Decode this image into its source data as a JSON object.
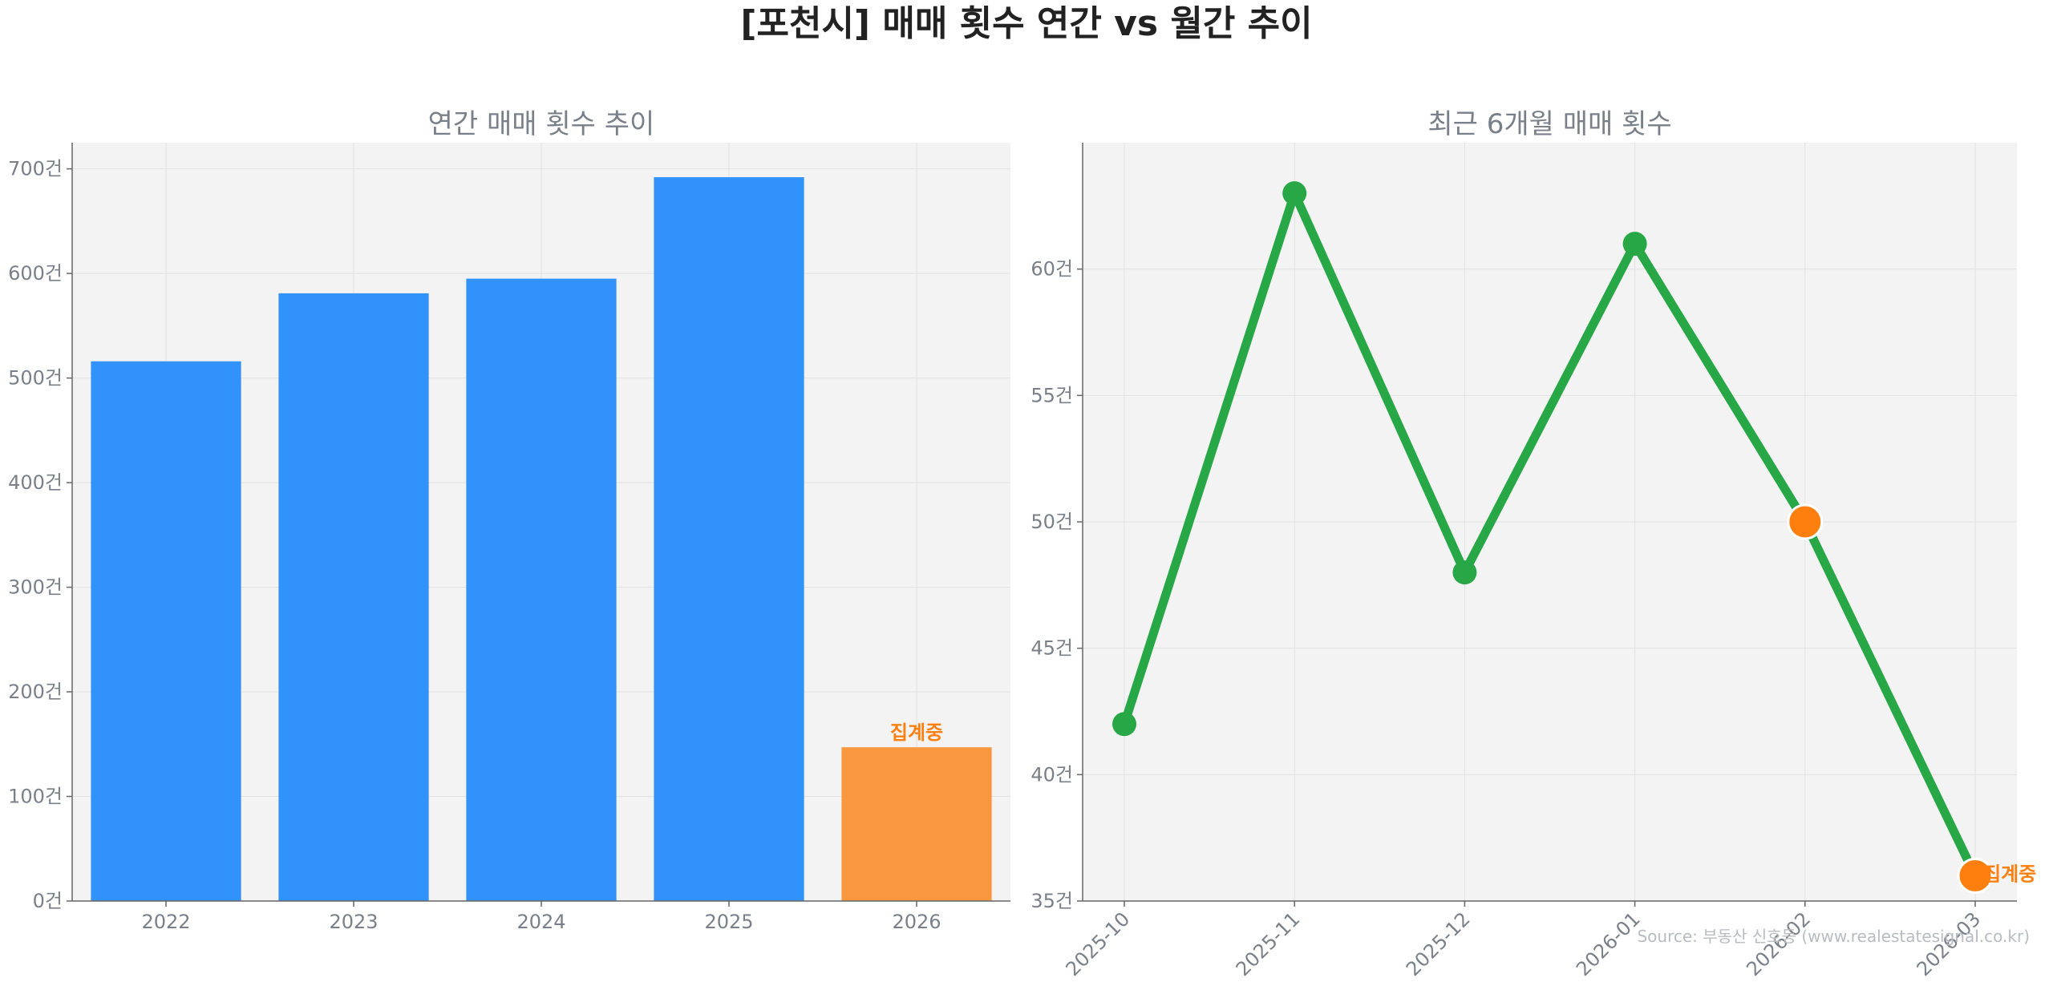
{
  "title": "[포천시] 매매 횟수 연간 vs 월간 추이",
  "source": "Source: 부동산 신호등 (www.realestatesignal.co.kr)",
  "colors": {
    "annual": "#3292fb",
    "annual_partial": "#f9973f",
    "monthly_line": "#27a745",
    "highlight": "#ff7f0e",
    "plot_bg": "#f3f3f3"
  },
  "chart_data": [
    {
      "type": "bar",
      "title": "연간 매매 횟수 추이",
      "categories": [
        "2022",
        "2023",
        "2024",
        "2025",
        "2026"
      ],
      "values": [
        516,
        581,
        595,
        692,
        147
      ],
      "partial_flags": [
        false,
        false,
        false,
        false,
        true
      ],
      "annotation": "집계중",
      "ylim": [
        0,
        725
      ],
      "yticks": [
        0,
        100,
        200,
        300,
        400,
        500,
        600,
        700
      ],
      "ytick_labels": [
        "0건",
        "100건",
        "200건",
        "300건",
        "400건",
        "500건",
        "600건",
        "700건"
      ],
      "grid": true
    },
    {
      "type": "line",
      "title": "최근 6개월 매매 횟수",
      "x": [
        "2025-10",
        "2025-11",
        "2025-12",
        "2026-01",
        "2026-02",
        "2026-03"
      ],
      "values": [
        42,
        63,
        48,
        61,
        50,
        36
      ],
      "highlight_points": [
        4,
        5
      ],
      "annotation": "집계중",
      "ylim": [
        35,
        65
      ],
      "yticks": [
        35,
        40,
        45,
        50,
        55,
        60
      ],
      "ytick_labels": [
        "35건",
        "40건",
        "45건",
        "50건",
        "55건",
        "60건"
      ],
      "grid": true
    }
  ]
}
